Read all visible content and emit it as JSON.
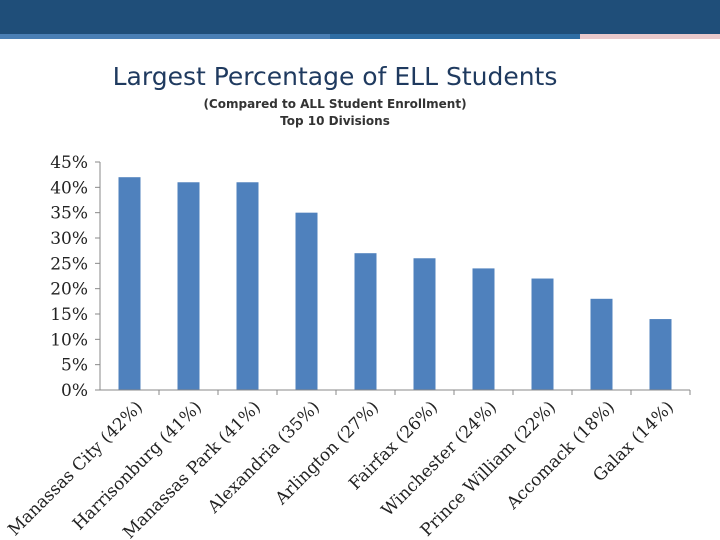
{
  "colors": {
    "band": "#1f4e79",
    "strip": [
      "#4a7fb5",
      "#2f6da3",
      "#e8c9cc"
    ],
    "bar": "#4f81bd",
    "axis": "#888888"
  },
  "header": {
    "title": "Largest Percentage of ELL Students",
    "subtitle": "(Compared to ALL Student Enrollment)",
    "subtitle2": "Top 10 Divisions"
  },
  "chart_data": {
    "type": "bar",
    "title": "Largest Percentage of ELL Students",
    "subtitle": "(Compared to ALL Student Enrollment) Top 10 Divisions",
    "categories": [
      "Manassas City (42%)",
      "Harrisonburg (41%)",
      "Manassas Park (41%)",
      "Alexandria (35%)",
      "Arlington (27%)",
      "Fairfax (26%)",
      "Winchester (24%)",
      "Prince William (22%)",
      "Accomack (18%)",
      "Galax (14%)"
    ],
    "values": [
      0.42,
      0.41,
      0.41,
      0.35,
      0.27,
      0.26,
      0.24,
      0.22,
      0.18,
      0.14
    ],
    "ylim": [
      0,
      0.45
    ],
    "yticks": [
      "0%",
      "5%",
      "10%",
      "15%",
      "20%",
      "25%",
      "30%",
      "35%",
      "40%",
      "45%"
    ],
    "grid": false,
    "legend": "none"
  }
}
